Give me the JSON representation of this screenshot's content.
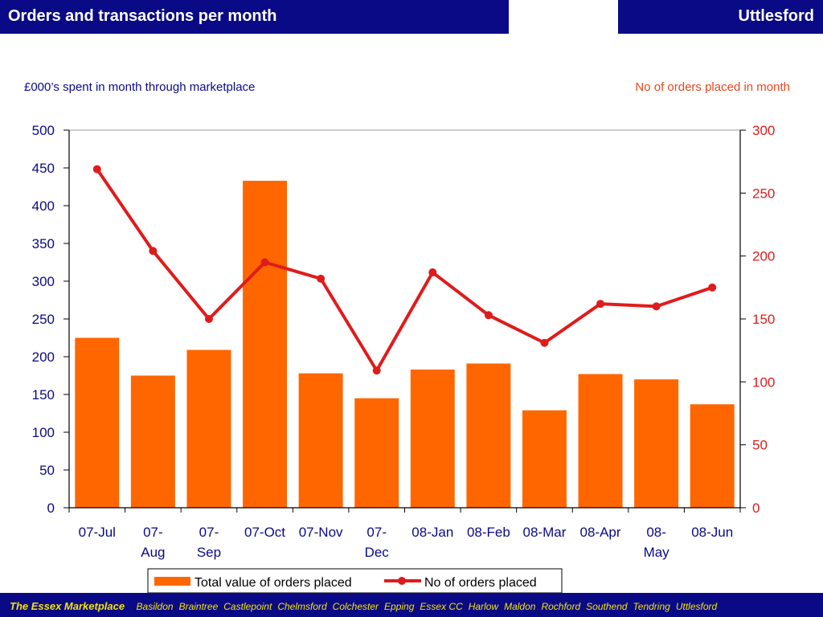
{
  "header": {
    "title": "Orders and transactions per month",
    "region": "Uttlesford"
  },
  "colors": {
    "header_bg": "#0a0a86",
    "bar": "#ff6600",
    "line": "#e01b1b",
    "left_caption": "#0a0a86",
    "right_caption": "#e8461e",
    "footer_text": "#f5e400"
  },
  "chart_data": {
    "type": "bar+line",
    "left_axis_caption": "£000’s spent in month through marketplace",
    "right_axis_caption": "No of orders placed in month",
    "categories": [
      [
        "07-Jul"
      ],
      [
        "07-",
        "Aug"
      ],
      [
        "07-",
        "Sep"
      ],
      [
        "07-Oct"
      ],
      [
        "07-Nov"
      ],
      [
        "07-",
        "Dec"
      ],
      [
        "08-Jan"
      ],
      [
        "08-Feb"
      ],
      [
        "08-Mar"
      ],
      [
        "08-Apr"
      ],
      [
        "08-",
        "May"
      ],
      [
        "08-Jun"
      ]
    ],
    "y_left": {
      "min": 0,
      "max": 500,
      "ticks": [
        0,
        50,
        100,
        150,
        200,
        250,
        300,
        350,
        400,
        450,
        500
      ]
    },
    "y_right": {
      "min": 0,
      "max": 300,
      "ticks": [
        0,
        50,
        100,
        150,
        200,
        250,
        300
      ]
    },
    "series": [
      {
        "name": "Total value of orders placed",
        "type": "bar",
        "axis": "left",
        "values": [
          225,
          175,
          209,
          433,
          178,
          145,
          183,
          191,
          129,
          177,
          170,
          137
        ]
      },
      {
        "name": "No of orders placed",
        "type": "line",
        "axis": "right",
        "values": [
          269,
          204,
          150,
          195,
          182,
          109,
          187,
          153,
          131,
          162,
          160,
          175
        ]
      }
    ],
    "legend_position": "bottom"
  },
  "footer": {
    "brand": "The Essex Marketplace",
    "towns": [
      "Basildon",
      "Braintree",
      "Castlepoint",
      "Chelmsford",
      "Colchester",
      "Epping",
      "Essex CC",
      "Harlow",
      "Maldon",
      "Rochford",
      "Southend",
      "Tendring",
      "Uttlesford"
    ]
  }
}
